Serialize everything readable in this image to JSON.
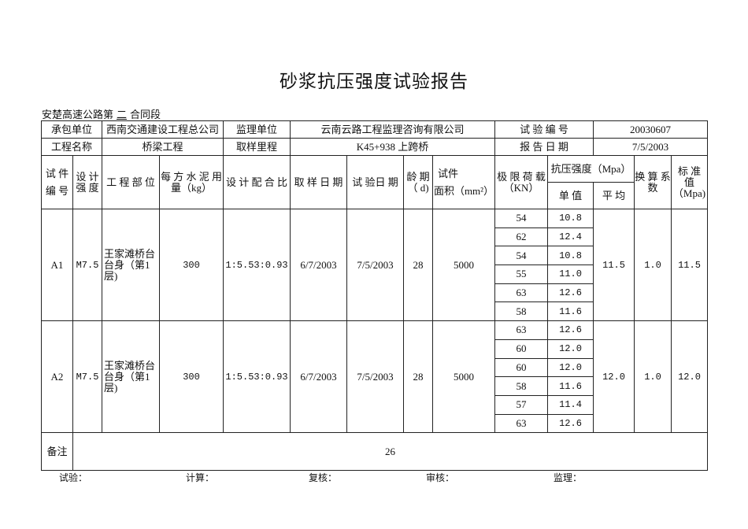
{
  "title": "砂浆抗压强度试验报告",
  "section_prefix": "安楚高速公路第",
  "section_no": "二",
  "section_suffix": "合同段",
  "info": {
    "contractor_label": "承包单位",
    "contractor": "西南交通建设工程总公司",
    "supervisor_label": "监理单位",
    "supervisor": "云南云路工程监理咨询有限公司",
    "test_no_label": "试 验 编 号",
    "test_no": "20030607",
    "project_label": "工程名称",
    "project": "桥梁工程",
    "mileage_label": "取样里程",
    "mileage": "K45+938  上跨桥",
    "report_date_label": "报 告 日 期",
    "report_date": "7/5/2003"
  },
  "headers": {
    "specimen_no": "试 件 编 号",
    "design_strength": "设 计 强 度",
    "part": "工 程 部 位",
    "cement": "每 方 水 泥 用 量（kg）",
    "mix": "设 计 配 合 比",
    "sample_date": "取 样 日 期",
    "test_date": "试 验日 期",
    "age": "龄 期（ d)",
    "area_top": "试件",
    "area": "面积（mm²）",
    "load": "极 限 荷 载（KN）",
    "strength": "抗压强度（Mpa）",
    "single": "单 值",
    "avg": "平 均",
    "factor": "换 算 系 数",
    "std": "标 准 值（Mpa)"
  },
  "specimens": [
    {
      "id": "A1",
      "grade": "M7.5",
      "part": "王家滩桥台台身（第1层)",
      "cement": "300",
      "mix": "1:5.53:0.93",
      "sample_date": "6/7/2003",
      "test_date": "7/5/2003",
      "age": "28",
      "area": "5000",
      "loads": [
        "54",
        "62",
        "54",
        "55",
        "63",
        "58"
      ],
      "singles": [
        "10.8",
        "12.4",
        "10.8",
        "11.0",
        "12.6",
        "11.6"
      ],
      "avg": "11.5",
      "factor": "1.0",
      "std": "11.5"
    },
    {
      "id": "A2",
      "grade": "M7.5",
      "part": "王家滩桥台台身（第1层)",
      "cement": "300",
      "mix": "1:5.53:0.93",
      "sample_date": "6/7/2003",
      "test_date": "7/5/2003",
      "age": "28",
      "area": "5000",
      "loads": [
        "63",
        "60",
        "60",
        "58",
        "57",
        "63"
      ],
      "singles": [
        "12.6",
        "12.0",
        "12.0",
        "11.6",
        "11.4",
        "12.6"
      ],
      "avg": "12.0",
      "factor": "1.0",
      "std": "12.0"
    }
  ],
  "remarks_label": "备注",
  "remarks": "26",
  "footer": {
    "test": "试验：",
    "calc": "计算：",
    "review": "复核：",
    "audit": "审核：",
    "supervise": "监理："
  }
}
